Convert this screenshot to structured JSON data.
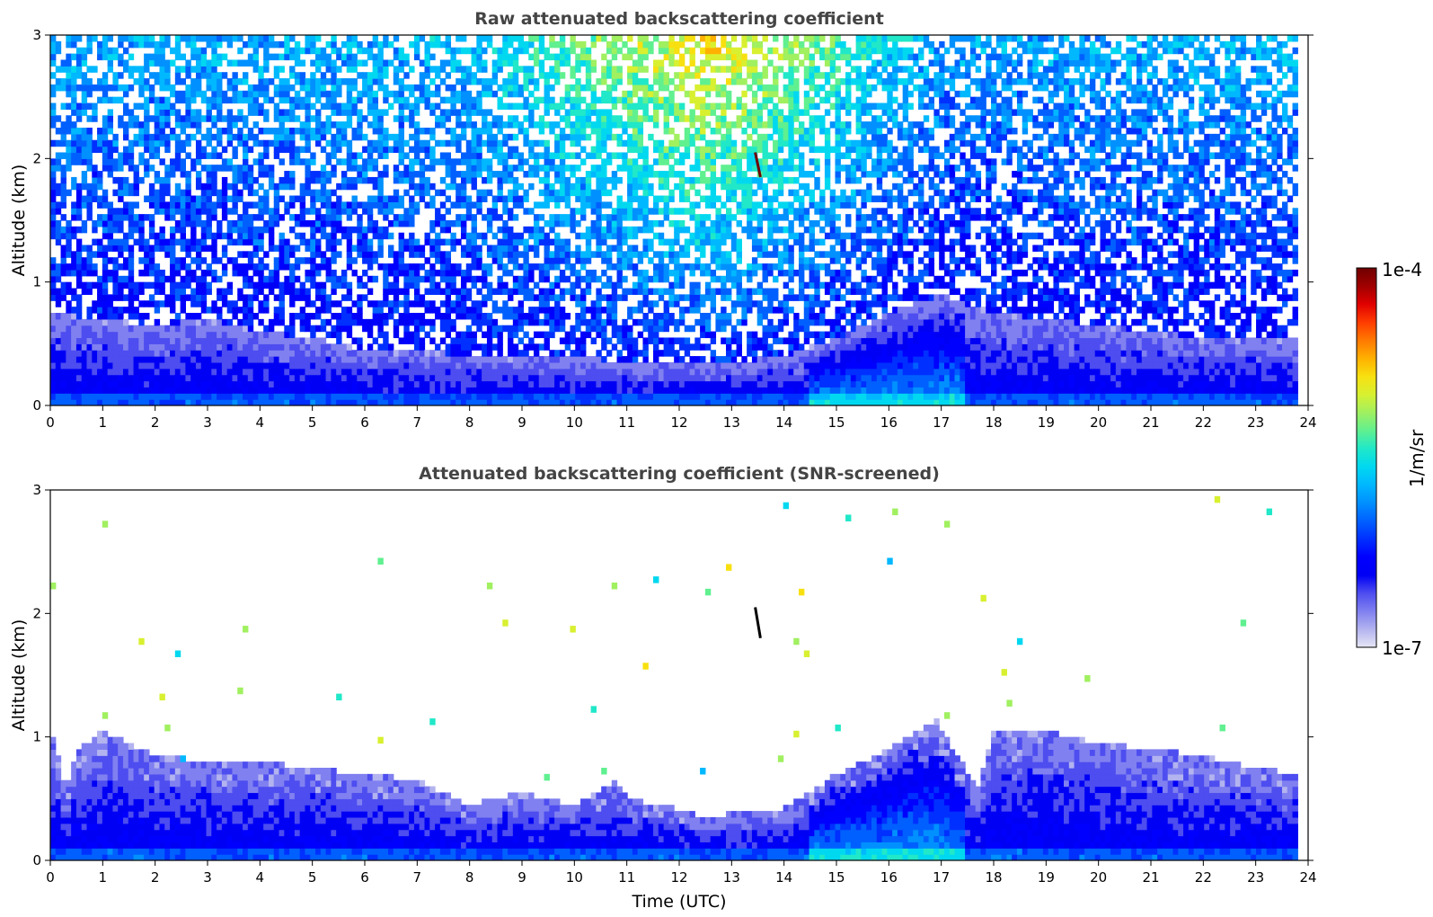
{
  "chart_data": [
    {
      "type": "heatmap",
      "title": "Raw attenuated backscattering coefficient",
      "xlabel": "",
      "ylabel": "Altitude (km)",
      "xlim": [
        0,
        24
      ],
      "ylim": [
        0,
        3
      ],
      "xticks": [
        "0",
        "1",
        "2",
        "3",
        "4",
        "5",
        "6",
        "7",
        "8",
        "9",
        "10",
        "11",
        "12",
        "13",
        "14",
        "15",
        "16",
        "17",
        "18",
        "19",
        "20",
        "21",
        "22",
        "23",
        "24"
      ],
      "yticks": [
        "0",
        "1",
        "2",
        "3"
      ],
      "data_end_hour": 23.8,
      "description_values": {
        "boundary_layer_top_km_by_hour": [
          [
            0,
            0.75
          ],
          [
            1,
            0.7
          ],
          [
            2,
            0.65
          ],
          [
            3,
            0.7
          ],
          [
            4,
            0.6
          ],
          [
            5,
            0.55
          ],
          [
            6,
            0.45
          ],
          [
            7,
            0.45
          ],
          [
            8,
            0.4
          ],
          [
            9,
            0.4
          ],
          [
            10,
            0.4
          ],
          [
            11,
            0.35
          ],
          [
            12,
            0.35
          ],
          [
            13,
            0.35
          ],
          [
            14,
            0.4
          ],
          [
            15,
            0.55
          ],
          [
            16,
            0.75
          ],
          [
            17,
            0.9
          ],
          [
            18,
            0.75
          ],
          [
            19,
            0.7
          ],
          [
            20,
            0.65
          ],
          [
            21,
            0.6
          ],
          [
            22,
            0.55
          ],
          [
            23,
            0.55
          ]
        ],
        "noisy_high_signal_window_hours": [
          8,
          17
        ],
        "feature_at": {
          "hour": 13.5,
          "altitude_km": [
            1.85,
            2.05
          ]
        }
      }
    },
    {
      "type": "heatmap",
      "title": "Attenuated backscattering coefficient (SNR-screened)",
      "xlabel": "Time (UTC)",
      "ylabel": "Altitude (km)",
      "xlim": [
        0,
        24
      ],
      "ylim": [
        0,
        3
      ],
      "xticks": [
        "0",
        "1",
        "2",
        "3",
        "4",
        "5",
        "6",
        "7",
        "8",
        "9",
        "10",
        "11",
        "12",
        "13",
        "14",
        "15",
        "16",
        "17",
        "18",
        "19",
        "20",
        "21",
        "22",
        "23",
        "24"
      ],
      "yticks": [
        "0",
        "1",
        "2",
        "3"
      ],
      "data_end_hour": 23.8,
      "description_values": {
        "screened_layer_top_km_by_hour": [
          [
            0,
            1.1
          ],
          [
            0.3,
            0.55
          ],
          [
            0.5,
            0.9
          ],
          [
            1,
            1.05
          ],
          [
            2,
            0.85
          ],
          [
            3,
            0.8
          ],
          [
            4,
            0.8
          ],
          [
            5,
            0.75
          ],
          [
            6,
            0.7
          ],
          [
            7,
            0.65
          ],
          [
            8,
            0.45
          ],
          [
            9,
            0.55
          ],
          [
            10,
            0.45
          ],
          [
            10.8,
            0.65
          ],
          [
            11,
            0.5
          ],
          [
            12,
            0.42
          ],
          [
            12.5,
            0.35
          ],
          [
            13,
            0.38
          ],
          [
            14,
            0.42
          ],
          [
            15,
            0.7
          ],
          [
            16,
            0.9
          ],
          [
            16.9,
            1.15
          ],
          [
            17.2,
            0.9
          ],
          [
            17.7,
            0.6
          ],
          [
            18,
            1.05
          ],
          [
            19,
            1.05
          ],
          [
            20,
            0.95
          ],
          [
            21,
            0.9
          ],
          [
            22,
            0.85
          ],
          [
            23,
            0.75
          ],
          [
            23.8,
            0.7
          ]
        ],
        "feature_at": {
          "hour": 13.5,
          "altitude_km": [
            1.8,
            2.05
          ]
        }
      }
    }
  ],
  "colorbar": {
    "max_label": "1e-4",
    "min_label": "1e-7",
    "unit_label": "1/m/sr",
    "colormap": [
      "#e6e6f5",
      "#b3b3f0",
      "#8080f0",
      "#4d4df0",
      "#0000f5",
      "#0000ff",
      "#0030ff",
      "#0060ff",
      "#0090ff",
      "#00b8ff",
      "#00d8f0",
      "#20e8c8",
      "#60f090",
      "#a0f060",
      "#d8f030",
      "#f8e010",
      "#ffb000",
      "#ff7800",
      "#ff3c00",
      "#e00000",
      "#a00000",
      "#700000"
    ]
  }
}
